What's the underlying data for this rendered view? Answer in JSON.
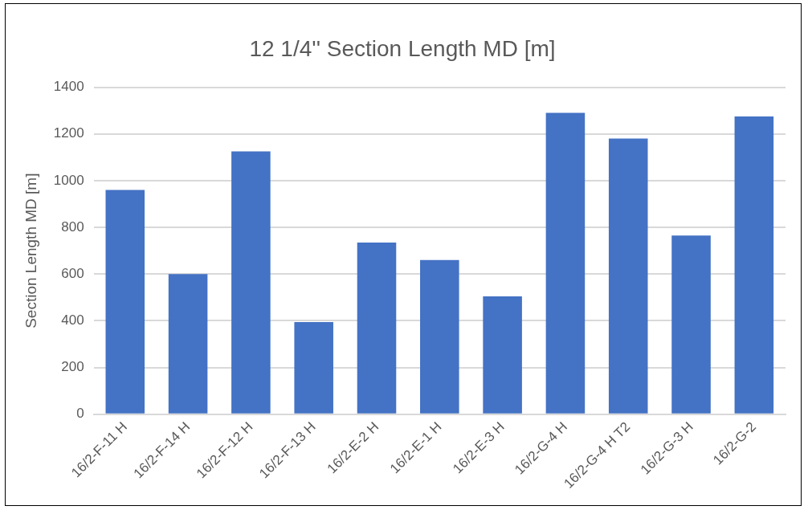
{
  "chart_data": {
    "type": "bar",
    "title": "12 1/4'' Section Length MD [m]",
    "ylabel": "Section Length MD [m]",
    "categories": [
      "16/2-F-11 H",
      "16/2-F-14 H",
      "16/2-F-12 H",
      "16/2-F-13 H",
      "16/2-E-2 H",
      "16/2-E-1 H",
      "16/2-E-3 H",
      "16/2-G-4 H",
      "16/2-G-4 H T2",
      "16/2-G-3 H",
      "16/2-G-2"
    ],
    "values": [
      960,
      600,
      1125,
      395,
      735,
      660,
      505,
      1290,
      1180,
      765,
      1275
    ],
    "color": "#4472c4",
    "ylim": [
      0,
      1400
    ],
    "yticks": [
      0,
      200,
      400,
      600,
      800,
      1000,
      1200,
      1400
    ],
    "grid": "y",
    "legend": false
  }
}
